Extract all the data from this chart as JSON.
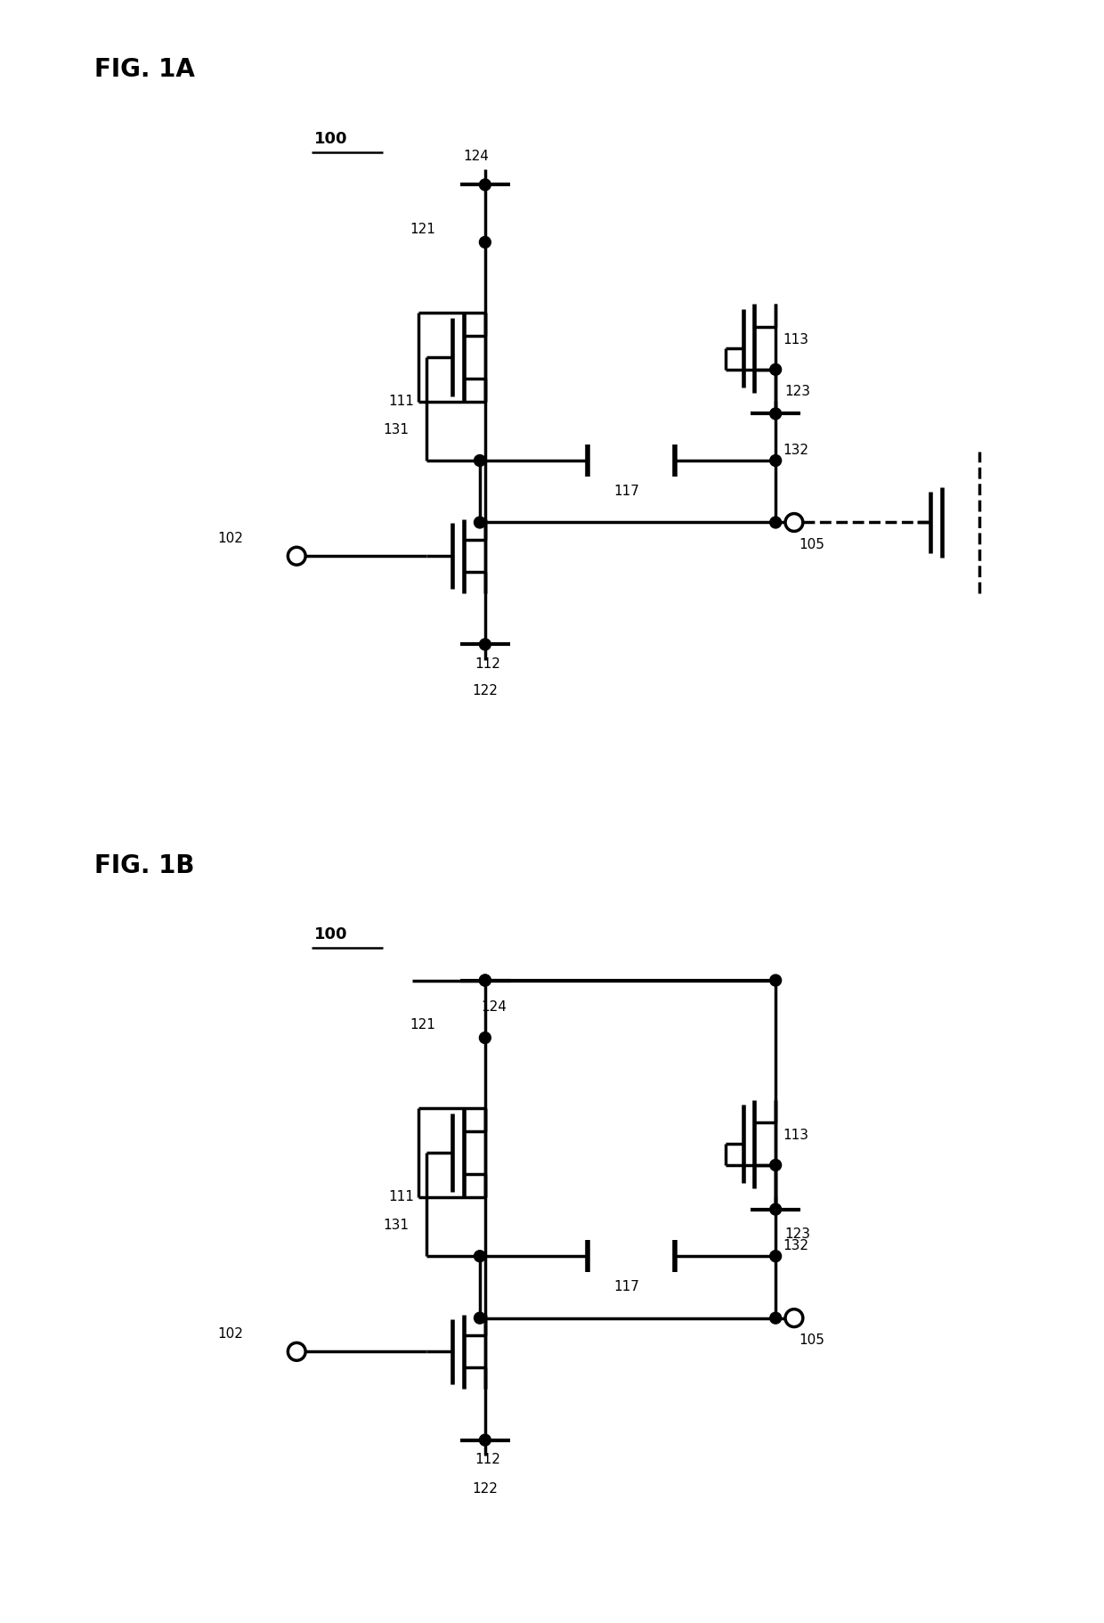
{
  "bg_color": "#ffffff",
  "lc": "#000000",
  "lw": 2.5,
  "fig1a": "FIG. 1A",
  "fig1b": "FIG. 1B",
  "label_100": "100",
  "label_102": "102",
  "label_105": "105",
  "label_111": "111",
  "label_112": "112",
  "label_113": "113",
  "label_117": "117",
  "label_121": "121",
  "label_122": "122",
  "label_123": "123",
  "label_124": "124",
  "label_131": "131",
  "label_132": "132"
}
